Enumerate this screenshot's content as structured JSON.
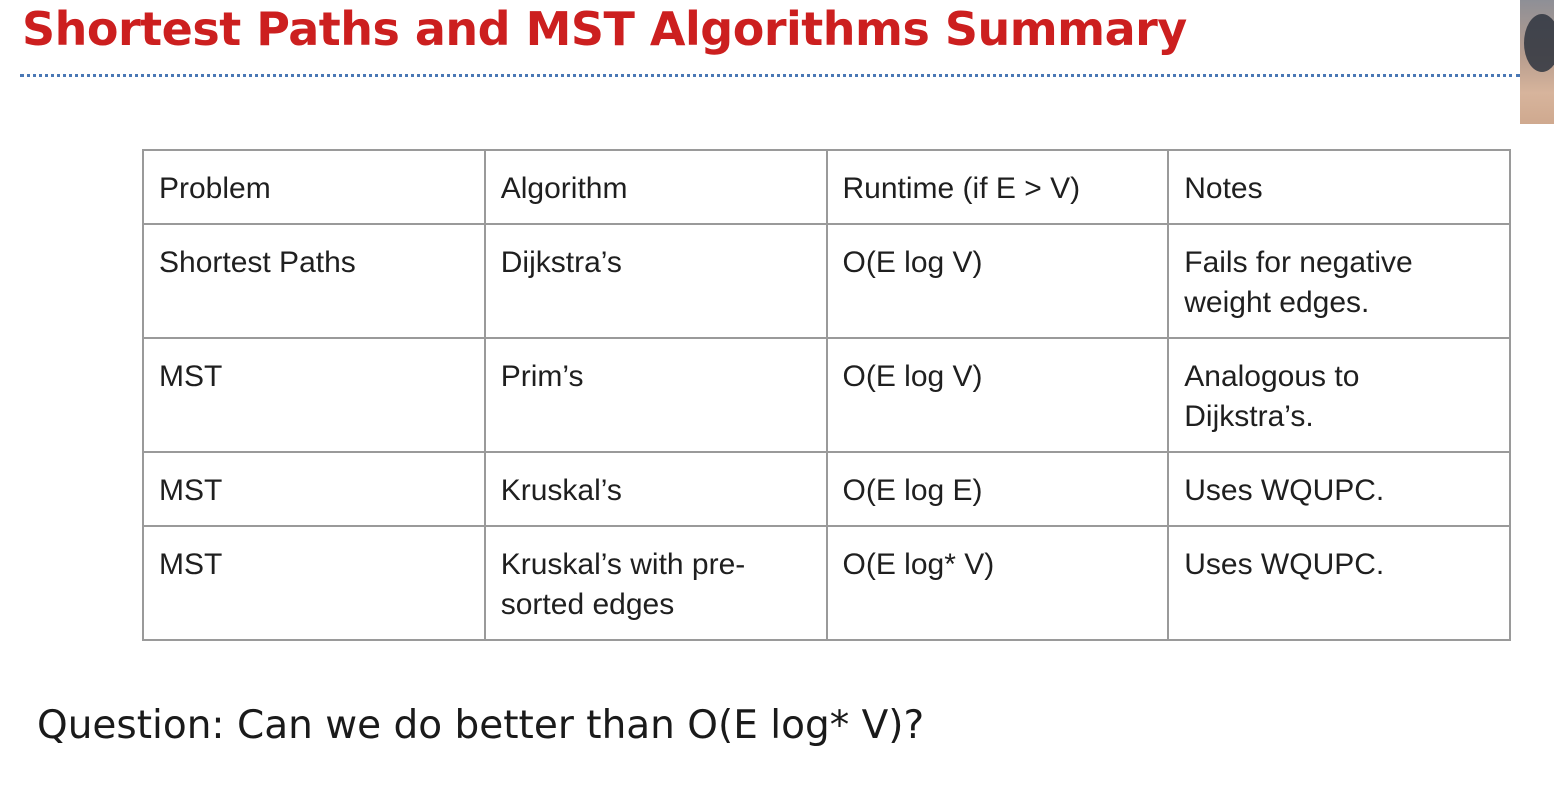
{
  "slide": {
    "title": "Shortest Paths and MST Algorithms Summary",
    "question": "Question: Can we do better than O(E log* V)?"
  },
  "colors": {
    "title": "#cc1f1f",
    "divider": "#4a78b5",
    "table_border": "#9a9a9a",
    "text": "#1a1a1a"
  },
  "table": {
    "headers": [
      "Problem",
      "Algorithm",
      "Runtime (if E > V)",
      "Notes"
    ],
    "rows": [
      [
        "Shortest Paths",
        "Dijkstra’s",
        "O(E log V)",
        "Fails for negative weight edges."
      ],
      [
        "MST",
        "Prim’s",
        "O(E log V)",
        "Analogous to Dijkstra’s."
      ],
      [
        "MST",
        "Kruskal’s",
        "O(E log E)",
        "Uses WQUPC."
      ],
      [
        "MST",
        "Kruskal’s with pre-sorted edges",
        "O(E log* V)",
        "Uses WQUPC."
      ]
    ]
  }
}
